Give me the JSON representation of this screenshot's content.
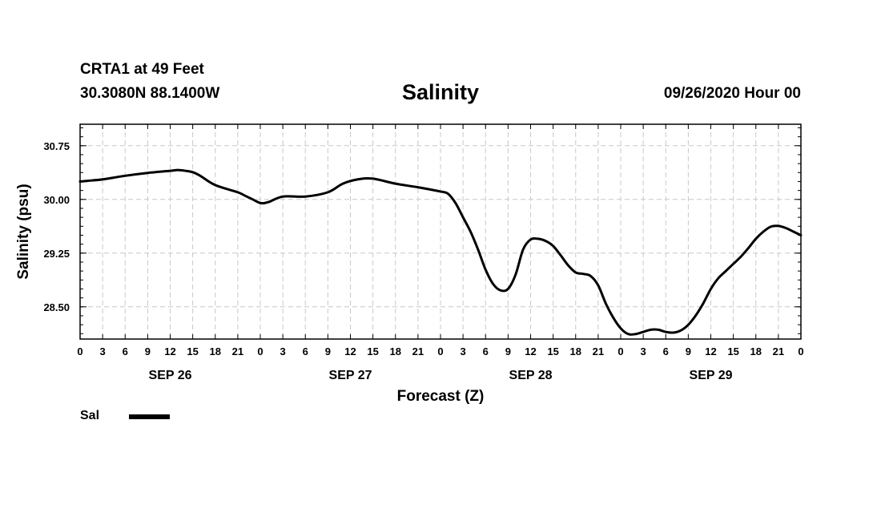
{
  "header": {
    "station": "CRTA1 at 49 Feet",
    "coords": "30.3080N 88.1400W",
    "title": "Salinity",
    "date": "09/26/2020 Hour 00"
  },
  "legend": {
    "label": "Sal"
  },
  "chart_data": {
    "type": "line",
    "title": "Salinity",
    "xlabel": "Forecast (Z)",
    "ylabel": "Salinity (psu)",
    "xlim": [
      0,
      96
    ],
    "ylim": [
      28.05,
      31.05
    ],
    "grid": true,
    "legend_position": "bottom-left",
    "x_ticks": [
      0,
      3,
      6,
      9,
      12,
      15,
      18,
      21,
      24,
      27,
      30,
      33,
      36,
      39,
      42,
      45,
      48,
      51,
      54,
      57,
      60,
      63,
      66,
      69,
      72,
      75,
      78,
      81,
      84,
      87,
      90,
      93,
      96
    ],
    "x_tick_labels": [
      "0",
      "3",
      "6",
      "9",
      "12",
      "15",
      "18",
      "21",
      "0",
      "3",
      "6",
      "9",
      "12",
      "15",
      "18",
      "21",
      "0",
      "3",
      "6",
      "9",
      "12",
      "15",
      "18",
      "21",
      "0",
      "3",
      "6",
      "9",
      "12",
      "15",
      "18",
      "21",
      "0"
    ],
    "y_ticks": [
      28.5,
      29.25,
      30.0,
      30.75
    ],
    "y_tick_labels": [
      "28.50",
      "29.25",
      "30.00",
      "30.75"
    ],
    "day_labels": [
      {
        "label": "SEP 26",
        "x": 12
      },
      {
        "label": "SEP 27",
        "x": 36
      },
      {
        "label": "SEP 28",
        "x": 60
      },
      {
        "label": "SEP 29",
        "x": 84
      }
    ],
    "series": [
      {
        "name": "Sal",
        "x": [
          0,
          1,
          3,
          6,
          9,
          12,
          13,
          14,
          15,
          16,
          18,
          21,
          22,
          23,
          24,
          25,
          27,
          30,
          33,
          35,
          37,
          39,
          42,
          45,
          48,
          49,
          50,
          51,
          52,
          53,
          54,
          55,
          56,
          57,
          58,
          59,
          60,
          61,
          62,
          63,
          64,
          65,
          66,
          67,
          68,
          69,
          70,
          71,
          72,
          73,
          74,
          75,
          76,
          77,
          78,
          79,
          80,
          81,
          82,
          83,
          84,
          85,
          86,
          87,
          88,
          89,
          90,
          91,
          92,
          93,
          94,
          95,
          96
        ],
        "y": [
          30.25,
          30.26,
          30.28,
          30.33,
          30.37,
          30.4,
          30.41,
          30.4,
          30.38,
          30.33,
          30.2,
          30.1,
          30.05,
          30.0,
          29.95,
          29.96,
          30.04,
          30.04,
          30.1,
          30.22,
          30.28,
          30.29,
          30.22,
          30.17,
          30.11,
          30.08,
          29.95,
          29.75,
          29.55,
          29.3,
          29.02,
          28.82,
          28.73,
          28.75,
          28.95,
          29.3,
          29.44,
          29.45,
          29.42,
          29.35,
          29.22,
          29.08,
          28.98,
          28.96,
          28.93,
          28.8,
          28.55,
          28.35,
          28.2,
          28.12,
          28.12,
          28.15,
          28.18,
          28.18,
          28.15,
          28.14,
          28.17,
          28.25,
          28.38,
          28.55,
          28.75,
          28.9,
          29.0,
          29.1,
          29.2,
          29.32,
          29.45,
          29.55,
          29.62,
          29.63,
          29.6,
          29.55,
          29.5
        ]
      }
    ]
  }
}
